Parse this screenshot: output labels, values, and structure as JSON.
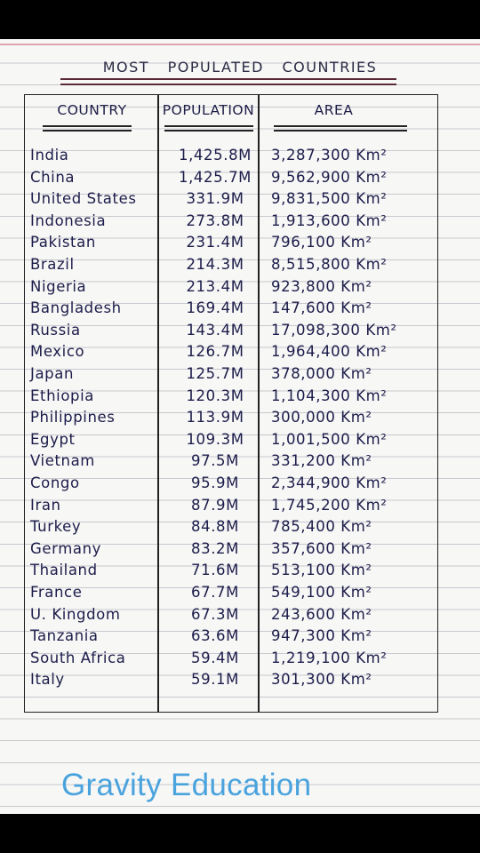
{
  "title": "MOST POPULATED COUNTRIES",
  "headers": {
    "country": "COUNTRY",
    "population": "POPULATION",
    "area": "AREA"
  },
  "rows": [
    {
      "country": "India",
      "population": "1,425.8M",
      "area": "3,287,300 Km²"
    },
    {
      "country": "China",
      "population": "1,425.7M",
      "area": "9,562,900 Km²"
    },
    {
      "country": "United States",
      "population": "331.9M",
      "area": "9,831,500 Km²"
    },
    {
      "country": "Indonesia",
      "population": "273.8M",
      "area": "1,913,600 Km²"
    },
    {
      "country": "Pakistan",
      "population": "231.4M",
      "area": "796,100 Km²"
    },
    {
      "country": "Brazil",
      "population": "214.3M",
      "area": "8,515,800 Km²"
    },
    {
      "country": "Nigeria",
      "population": "213.4M",
      "area": "923,800 Km²"
    },
    {
      "country": "Bangladesh",
      "population": "169.4M",
      "area": "147,600 Km²"
    },
    {
      "country": "Russia",
      "population": "143.4M",
      "area": "17,098,300 Km²"
    },
    {
      "country": "Mexico",
      "population": "126.7M",
      "area": "1,964,400 Km²"
    },
    {
      "country": "Japan",
      "population": "125.7M",
      "area": "378,000 Km²"
    },
    {
      "country": "Ethiopia",
      "population": "120.3M",
      "area": "1,104,300 Km²"
    },
    {
      "country": "Philippines",
      "population": "113.9M",
      "area": "300,000 Km²"
    },
    {
      "country": "Egypt",
      "population": "109.3M",
      "area": "1,001,500 Km²"
    },
    {
      "country": "Vietnam",
      "population": "97.5M",
      "area": "331,200 Km²"
    },
    {
      "country": "Congo",
      "population": "95.9M",
      "area": "2,344,900 Km²"
    },
    {
      "country": "Iran",
      "population": "87.9M",
      "area": "1,745,200 Km²"
    },
    {
      "country": "Turkey",
      "population": "84.8M",
      "area": "785,400 Km²"
    },
    {
      "country": "Germany",
      "population": "83.2M",
      "area": "357,600 Km²"
    },
    {
      "country": "Thailand",
      "population": "71.6M",
      "area": "513,100 Km²"
    },
    {
      "country": "France",
      "population": "67.7M",
      "area": "549,100 Km²"
    },
    {
      "country": "U. Kingdom",
      "population": "67.3M",
      "area": "243,600 Km²"
    },
    {
      "country": "Tanzania",
      "population": "63.6M",
      "area": "947,300 Km²"
    },
    {
      "country": "South Africa",
      "population": "59.4M",
      "area": "1,219,100 Km²"
    },
    {
      "country": "Italy",
      "population": "59.1M",
      "area": "301,300 Km²"
    }
  ],
  "watermark": "Gravity Education"
}
